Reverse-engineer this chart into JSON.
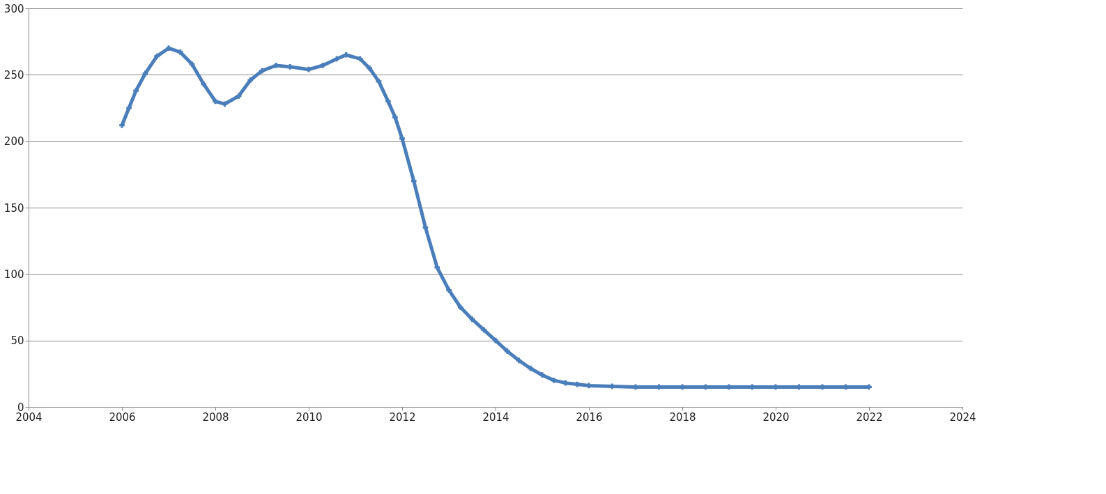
{
  "chart_data": {
    "type": "line",
    "color": "#4a7ebb",
    "marker": "cross",
    "line_style": "solid",
    "grid": "y",
    "x": [
      2006.0,
      2006.15,
      2006.3,
      2006.5,
      2006.75,
      2007.0,
      2007.25,
      2007.5,
      2007.75,
      2008.0,
      2008.2,
      2008.5,
      2008.75,
      2009.0,
      2009.3,
      2009.6,
      2010.0,
      2010.3,
      2010.6,
      2010.8,
      2011.1,
      2011.3,
      2011.5,
      2011.7,
      2011.85,
      2012.0,
      2012.25,
      2012.5,
      2012.75,
      2013.0,
      2013.25,
      2013.5,
      2013.75,
      2014.0,
      2014.25,
      2014.5,
      2014.75,
      2015.0,
      2015.25,
      2015.5,
      2015.75,
      2016.0,
      2016.5,
      2017.0,
      2017.5,
      2018.0,
      2018.5,
      2019.0,
      2019.5,
      2020.0,
      2020.5,
      2021.0,
      2021.5,
      2022.0
    ],
    "values": [
      212,
      225,
      238,
      251,
      264,
      270,
      267,
      258,
      243,
      230,
      228,
      234,
      246,
      253,
      257,
      256,
      254,
      257,
      262,
      265,
      262,
      255,
      245,
      230,
      218,
      202,
      170,
      135,
      105,
      88,
      75,
      66,
      58,
      50,
      42,
      35,
      29,
      24,
      20,
      18,
      17,
      16,
      15.5,
      15,
      15,
      15,
      15,
      15,
      15,
      15,
      15,
      15,
      15,
      15
    ],
    "xlim": [
      2004,
      2024
    ],
    "ylim": [
      0,
      300
    ],
    "xticks": [
      2004,
      2006,
      2008,
      2010,
      2012,
      2014,
      2016,
      2018,
      2020,
      2022,
      2024
    ],
    "yticks": [
      0,
      50,
      100,
      150,
      200,
      250,
      300
    ]
  }
}
